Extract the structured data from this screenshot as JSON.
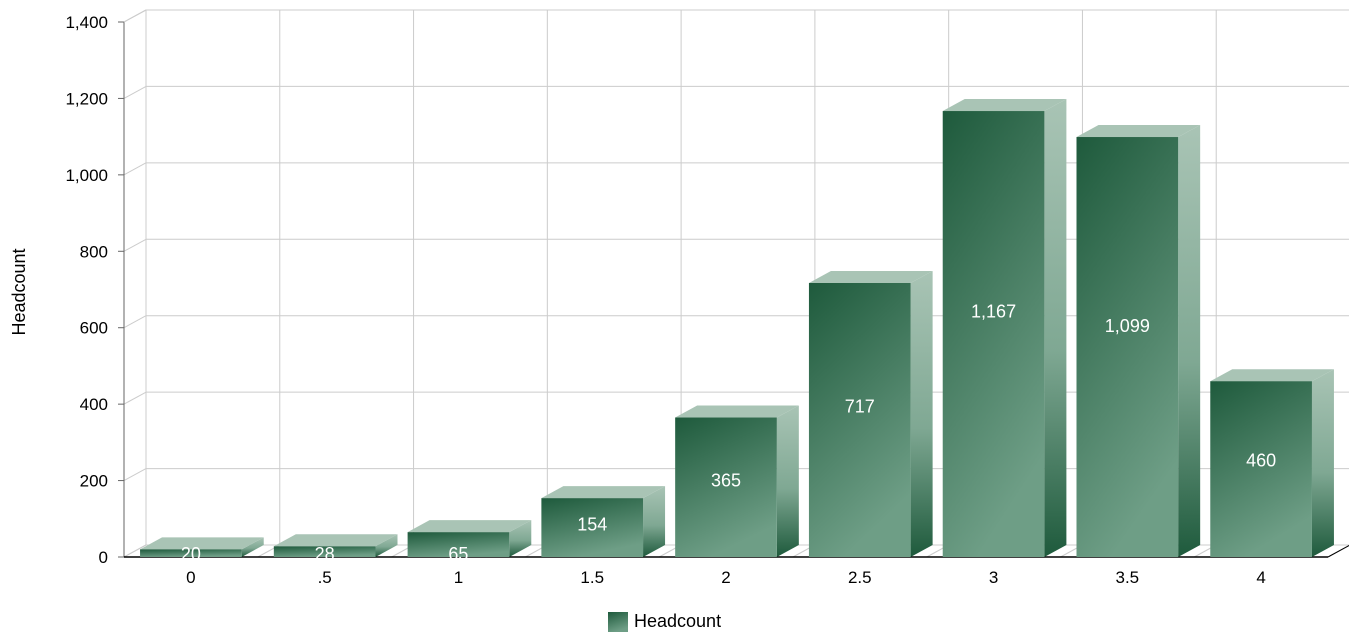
{
  "chart_data": {
    "type": "bar",
    "categories": [
      "0",
      ".5",
      "1",
      "1.5",
      "2",
      "2.5",
      "3",
      "3.5",
      "4"
    ],
    "series": [
      {
        "name": "Headcount",
        "values": [
          20,
          28,
          65,
          154,
          365,
          717,
          1167,
          1099,
          460
        ]
      }
    ],
    "data_labels": [
      "20",
      "28",
      "65",
      "154",
      "365",
      "717",
      "1,167",
      "1,099",
      "460"
    ],
    "y_ticks": [
      "0",
      "200",
      "400",
      "600",
      "800",
      "1,000",
      "1,200",
      "1,400"
    ],
    "ylim": [
      0,
      1400
    ],
    "xlabel": "",
    "ylabel": "Headcount",
    "grid": true,
    "legend_position": "bottom-center",
    "style": "3d-columns",
    "colors": {
      "bar_dark": "#1e5a3c",
      "bar_light": "#6e9e86",
      "bar_top": "#a9c4b5",
      "bar_side": "#a3bfb0",
      "grid": "#cccccc"
    }
  }
}
